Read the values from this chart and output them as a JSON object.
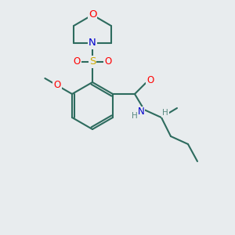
{
  "bg_color": "#e8ecee",
  "bond_color": "#2d6b5e",
  "bond_width": 1.5,
  "atom_colors": {
    "O": "#ff0000",
    "N": "#0000cc",
    "S": "#ccaa00",
    "C": "#2d6b5e",
    "H": "#5a8a80"
  },
  "font_size_atom": 8.5,
  "fig_size": [
    3.0,
    3.0
  ],
  "dpi": 100
}
